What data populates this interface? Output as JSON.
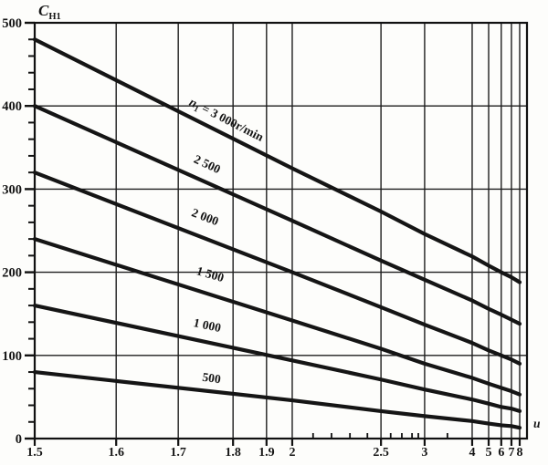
{
  "chart_data": {
    "type": "line",
    "title": "C_H1",
    "title_main": "C",
    "title_sub": "H1",
    "xlabel": "u",
    "ylabel": "C_H1",
    "x_scale": "nonlinear compressed (log-like) axis from 1.5 to 8",
    "xlim": [
      1.5,
      8
    ],
    "ylim": [
      0,
      500
    ],
    "grid": true,
    "x_major_tick_labels": [
      "1.5",
      "1.6",
      "1.7",
      "1.8",
      "1.9",
      "2",
      "2.5",
      "3",
      "4",
      "5",
      "6",
      "7",
      "8"
    ],
    "x_major_tick_values": [
      1.5,
      1.6,
      1.7,
      1.8,
      1.9,
      2,
      2.5,
      3,
      4,
      5,
      6,
      7,
      8
    ],
    "x_minor_tick_values": [
      2.1,
      2.2,
      2.3,
      2.4,
      2.6,
      2.7,
      2.8,
      2.9,
      3.5
    ],
    "x_gridline_values": [
      1.6,
      1.7,
      1.8,
      1.9,
      2,
      2.5,
      3,
      4,
      5,
      6,
      7,
      8
    ],
    "y_major_ticks": [
      0,
      100,
      200,
      300,
      400,
      500
    ],
    "y_major_tick_labels": [
      "0",
      "100",
      "200",
      "300",
      "400",
      "500"
    ],
    "y_minor_step": 20,
    "x_tick_fractions": {
      "1.5": 0,
      "1.6": 0.168,
      "1.7": 0.296,
      "1.8": 0.409,
      "1.9": 0.478,
      "2": 0.531,
      "2.1": 0.574,
      "2.2": 0.612,
      "2.3": 0.65,
      "2.4": 0.686,
      "2.5": 0.714,
      "2.6": 0.734,
      "2.7": 0.757,
      "2.8": 0.778,
      "2.9": 0.791,
      "3": 0.804,
      "3.5": 0.851,
      "4": 0.902,
      "5": 0.936,
      "6": 0.962,
      "7": 0.983,
      "8": 1.0
    },
    "u_values": [
      1.5,
      2,
      2.5,
      3,
      4,
      5,
      6,
      7,
      8
    ],
    "series": [
      {
        "name": "n1 = 3 000 r/min",
        "n_rpm": 3000,
        "label_pre": "n",
        "label_sub": "1",
        "label_post": " = 3 000r/min",
        "C": [
          480,
          325,
          273,
          246,
          219,
          208,
          200,
          194,
          188
        ]
      },
      {
        "name": "2 500 r/min",
        "n_rpm": 2500,
        "label": "2 500",
        "C": [
          400,
          262,
          214,
          191,
          166,
          156,
          149,
          143,
          138
        ]
      },
      {
        "name": "2 000 r/min",
        "n_rpm": 2000,
        "label": "2 000",
        "C": [
          320,
          200,
          158,
          137,
          115,
          106,
          100,
          95,
          90
        ]
      },
      {
        "name": "1 500 r/min",
        "n_rpm": 1500,
        "label": "1 500",
        "C": [
          240,
          142,
          108,
          90,
          73,
          66,
          61,
          57,
          53
        ]
      },
      {
        "name": "1 000 r/min",
        "n_rpm": 1000,
        "label": "1 000",
        "C": [
          160,
          94,
          71,
          59,
          47,
          42,
          38,
          36,
          33
        ]
      },
      {
        "name": "500 r/min",
        "n_rpm": 500,
        "label": "500",
        "C": [
          80,
          46,
          33,
          27,
          21,
          18,
          16,
          15,
          13
        ]
      }
    ],
    "legend_position": "labels along lines",
    "line_color": "#151515",
    "grid_color": "#1d1d1d",
    "background": "#fdfdfb"
  }
}
